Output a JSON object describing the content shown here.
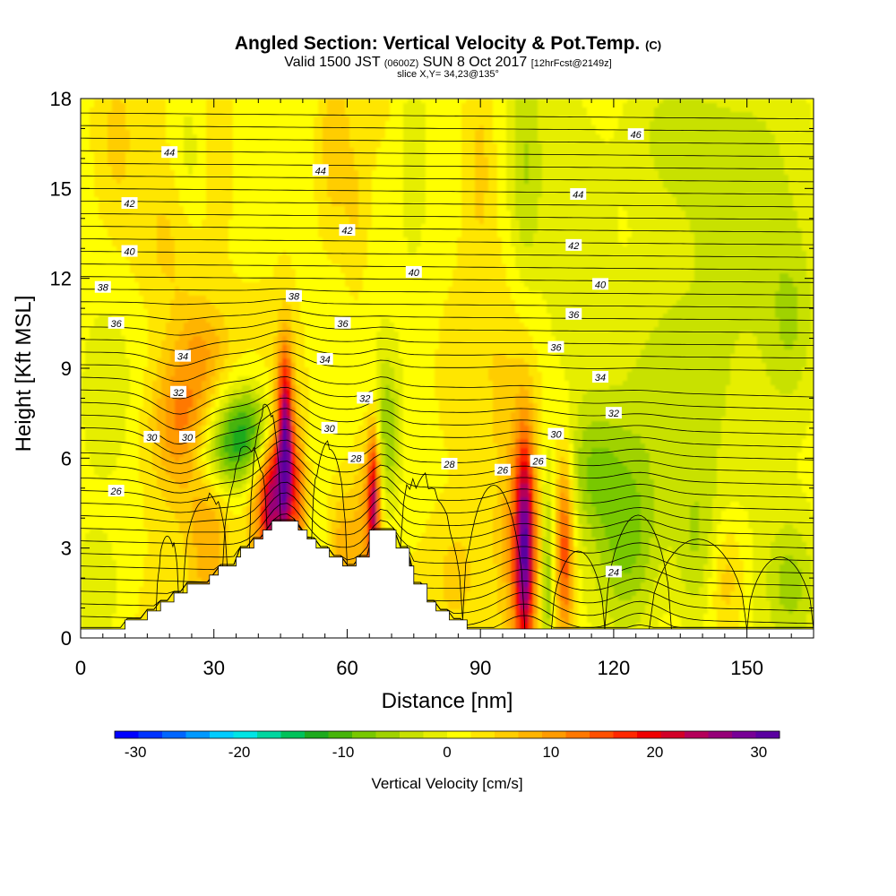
{
  "header": {
    "title": "Angled Section: Vertical Velocity & Pot.Temp.",
    "title_suffix": "(C)",
    "valid_a": "Valid 1500 JST",
    "valid_b": "(0600Z)",
    "valid_c": "SUN 8 Oct 2017",
    "valid_d": "[12hrFcst@2149z]",
    "slice": "slice X,Y= 34,23@135°"
  },
  "chart_data": {
    "type": "heatmap",
    "xlabel": "Distance [nm]",
    "ylabel": "Height [Kft MSL]",
    "xlim": [
      0,
      165
    ],
    "ylim": [
      0,
      18
    ],
    "x_ticks": [
      0,
      30,
      60,
      90,
      120,
      150
    ],
    "y_ticks": [
      0,
      3,
      6,
      9,
      12,
      15,
      18
    ],
    "colorbar": {
      "label": "Vertical Velocity [cm/s]",
      "range": [
        -32,
        32
      ],
      "tick_values": [
        -30,
        -20,
        -10,
        0,
        10,
        20,
        30
      ],
      "colors": [
        "#0000ff",
        "#0033ff",
        "#0066ff",
        "#0099ff",
        "#00ccff",
        "#00e5e5",
        "#00d6a0",
        "#00c25a",
        "#1eaa1e",
        "#46b40a",
        "#78c800",
        "#a0d200",
        "#c8e100",
        "#e6ee00",
        "#ffff00",
        "#ffe600",
        "#ffcd00",
        "#ffb400",
        "#ff9b00",
        "#ff7800",
        "#ff5000",
        "#ff2800",
        "#f00000",
        "#d20028",
        "#b4005a",
        "#960078",
        "#780096",
        "#5a00a0"
      ]
    },
    "terrain_profile": [
      [
        0,
        0.3
      ],
      [
        10,
        0.3
      ],
      [
        10,
        0.6
      ],
      [
        15,
        0.6
      ],
      [
        15,
        0.9
      ],
      [
        18,
        0.9
      ],
      [
        18,
        1.2
      ],
      [
        21,
        1.2
      ],
      [
        21,
        1.5
      ],
      [
        24,
        1.5
      ],
      [
        24,
        1.8
      ],
      [
        29,
        1.8
      ],
      [
        29,
        2.1
      ],
      [
        31,
        2.1
      ],
      [
        31,
        2.4
      ],
      [
        35,
        2.4
      ],
      [
        35,
        2.7
      ],
      [
        36,
        2.7
      ],
      [
        36,
        3.0
      ],
      [
        39,
        3.0
      ],
      [
        39,
        3.3
      ],
      [
        41,
        3.3
      ],
      [
        41,
        3.6
      ],
      [
        43,
        3.6
      ],
      [
        43,
        3.9
      ],
      [
        49,
        3.9
      ],
      [
        49,
        3.6
      ],
      [
        51,
        3.6
      ],
      [
        51,
        3.3
      ],
      [
        53,
        3.3
      ],
      [
        53,
        3.0
      ],
      [
        56,
        3.0
      ],
      [
        56,
        2.7
      ],
      [
        59,
        2.7
      ],
      [
        59,
        2.4
      ],
      [
        62,
        2.4
      ],
      [
        62,
        2.7
      ],
      [
        65,
        2.7
      ],
      [
        65,
        3.6
      ],
      [
        71,
        3.6
      ],
      [
        71,
        3.0
      ],
      [
        74,
        3.0
      ],
      [
        74,
        2.4
      ],
      [
        75,
        2.4
      ],
      [
        75,
        1.8
      ],
      [
        78,
        1.8
      ],
      [
        78,
        1.2
      ],
      [
        80,
        1.2
      ],
      [
        80,
        0.9
      ],
      [
        83,
        0.9
      ],
      [
        83,
        0.6
      ],
      [
        87,
        0.6
      ],
      [
        87,
        0.3
      ],
      [
        165,
        0.3
      ]
    ],
    "vertical_velocity_features": [
      {
        "x": 46,
        "y": 6.2,
        "sx": 1.3,
        "sy": 2.2,
        "w": 32
      },
      {
        "x": 43,
        "y": 4.5,
        "sx": 1.5,
        "sy": 1.8,
        "w": 16
      },
      {
        "x": 49,
        "y": 4.7,
        "sx": 1.3,
        "sy": 1.7,
        "w": 12
      },
      {
        "x": 41,
        "y": 4.2,
        "sx": 2.5,
        "sy": 2.0,
        "w": 10
      },
      {
        "x": 38,
        "y": 6.9,
        "sx": 5.0,
        "sy": 1.1,
        "w": -13
      },
      {
        "x": 31,
        "y": 6.1,
        "sx": 5.0,
        "sy": 1.0,
        "w": -8
      },
      {
        "x": 23,
        "y": 7.2,
        "sx": 5.0,
        "sy": 1.8,
        "w": 12
      },
      {
        "x": 29,
        "y": 3.0,
        "sx": 3.5,
        "sy": 2.0,
        "w": 7
      },
      {
        "x": 59,
        "y": 2.7,
        "sx": 2.0,
        "sy": 1.5,
        "w": 7
      },
      {
        "x": 66,
        "y": 4.7,
        "sx": 1.0,
        "sy": 1.7,
        "w": 20
      },
      {
        "x": 64,
        "y": 3.5,
        "sx": 2.0,
        "sy": 2.0,
        "w": 7
      },
      {
        "x": 69,
        "y": 6.8,
        "sx": 2.0,
        "sy": 1.8,
        "w": -8
      },
      {
        "x": 100,
        "y": 3.0,
        "sx": 1.6,
        "sy": 2.6,
        "w": 24
      },
      {
        "x": 98,
        "y": 2.6,
        "sx": 3.5,
        "sy": 3.0,
        "w": 8
      },
      {
        "x": 105,
        "y": 2.0,
        "sx": 0.8,
        "sy": 2.5,
        "w": -8
      },
      {
        "x": 109,
        "y": 2.9,
        "sx": 1.4,
        "sy": 2.3,
        "w": 15
      },
      {
        "x": 85,
        "y": 2.0,
        "sx": 4.0,
        "sy": 1.5,
        "w": 4
      },
      {
        "x": 123,
        "y": 3.3,
        "sx": 5.5,
        "sy": 2.5,
        "w": -10
      },
      {
        "x": 115,
        "y": 5.6,
        "sx": 4.0,
        "sy": 1.5,
        "w": -6
      },
      {
        "x": 139,
        "y": 3.0,
        "sx": 4.0,
        "sy": 2.0,
        "w": -6
      },
      {
        "x": 145,
        "y": 2.0,
        "sx": 3.0,
        "sy": 1.5,
        "w": 6
      },
      {
        "x": 160,
        "y": 1.8,
        "sx": 4.0,
        "sy": 1.5,
        "w": -6
      },
      {
        "x": 150,
        "y": 7.5,
        "sx": 10.0,
        "sy": 3.0,
        "w": -3
      },
      {
        "x": 150,
        "y": 14.0,
        "sx": 10.0,
        "sy": 3.0,
        "w": -5
      },
      {
        "x": 160,
        "y": 10.5,
        "sx": 4.0,
        "sy": 2.0,
        "w": -5
      },
      {
        "x": 132,
        "y": 17.0,
        "sx": 8.0,
        "sy": 2.0,
        "w": -5
      },
      {
        "x": 110,
        "y": 12.0,
        "sx": 6.0,
        "sy": 4.0,
        "w": -4
      },
      {
        "x": 57,
        "y": 16.5,
        "sx": 2.5,
        "sy": 2.0,
        "w": 5
      },
      {
        "x": 90,
        "y": 16.0,
        "sx": 2.5,
        "sy": 2.5,
        "w": 4
      },
      {
        "x": 100,
        "y": 15.5,
        "sx": 2.5,
        "sy": 3.0,
        "w": -5
      },
      {
        "x": 75,
        "y": 16.5,
        "sx": 2.5,
        "sy": 2.5,
        "w": -4
      },
      {
        "x": 62,
        "y": 14.0,
        "sx": 2.0,
        "sy": 2.0,
        "w": 3
      },
      {
        "x": 20,
        "y": 13.0,
        "sx": 6.0,
        "sy": 2.0,
        "w": 4
      },
      {
        "x": 28,
        "y": 9.8,
        "sx": 4.0,
        "sy": 1.0,
        "w": 5
      },
      {
        "x": 25,
        "y": 16.0,
        "sx": 3.0,
        "sy": 2.0,
        "w": -4
      },
      {
        "x": 8,
        "y": 16.5,
        "sx": 3.0,
        "sy": 2.0,
        "w": 3
      },
      {
        "x": 30,
        "y": 17.0,
        "sx": 3.5,
        "sy": 2.0,
        "w": 3
      },
      {
        "x": 133,
        "y": 8.5,
        "sx": 8.0,
        "sy": 2.5,
        "w": -3
      },
      {
        "x": 4,
        "y": 1.5,
        "sx": 4.0,
        "sy": 1.5,
        "w": -4
      },
      {
        "x": 5,
        "y": 8.0,
        "sx": 4.0,
        "sy": 2.0,
        "w": -3
      },
      {
        "x": 90,
        "y": 9.0,
        "sx": 12.0,
        "sy": 2.5,
        "w": 2
      }
    ],
    "potential_temperature_labels": [
      {
        "x": 8,
        "y": 4.9,
        "text": "26"
      },
      {
        "x": 95,
        "y": 5.6,
        "text": "26"
      },
      {
        "x": 103,
        "y": 5.9,
        "text": "26"
      },
      {
        "x": 62,
        "y": 6.0,
        "text": "28"
      },
      {
        "x": 83,
        "y": 5.8,
        "text": "28"
      },
      {
        "x": 16,
        "y": 6.7,
        "text": "30"
      },
      {
        "x": 24,
        "y": 6.7,
        "text": "30"
      },
      {
        "x": 56,
        "y": 7.0,
        "text": "30"
      },
      {
        "x": 107,
        "y": 6.8,
        "text": "30"
      },
      {
        "x": 22,
        "y": 8.2,
        "text": "32"
      },
      {
        "x": 64,
        "y": 8.0,
        "text": "32"
      },
      {
        "x": 120,
        "y": 7.5,
        "text": "32"
      },
      {
        "x": 23,
        "y": 9.4,
        "text": "34"
      },
      {
        "x": 55,
        "y": 9.3,
        "text": "34"
      },
      {
        "x": 117,
        "y": 8.7,
        "text": "34"
      },
      {
        "x": 8,
        "y": 10.5,
        "text": "36"
      },
      {
        "x": 59,
        "y": 10.5,
        "text": "36"
      },
      {
        "x": 107,
        "y": 9.7,
        "text": "36"
      },
      {
        "x": 111,
        "y": 10.8,
        "text": "36"
      },
      {
        "x": 5,
        "y": 11.7,
        "text": "38"
      },
      {
        "x": 48,
        "y": 11.4,
        "text": "38"
      },
      {
        "x": 11,
        "y": 12.9,
        "text": "40"
      },
      {
        "x": 75,
        "y": 12.2,
        "text": "40"
      },
      {
        "x": 117,
        "y": 11.8,
        "text": "40"
      },
      {
        "x": 11,
        "y": 14.5,
        "text": "42"
      },
      {
        "x": 60,
        "y": 13.6,
        "text": "42"
      },
      {
        "x": 111,
        "y": 13.1,
        "text": "42"
      },
      {
        "x": 20,
        "y": 16.2,
        "text": "44"
      },
      {
        "x": 54,
        "y": 15.6,
        "text": "44"
      },
      {
        "x": 112,
        "y": 14.8,
        "text": "44"
      },
      {
        "x": 125,
        "y": 16.8,
        "text": "46"
      },
      {
        "x": 120,
        "y": 2.2,
        "text": "24"
      }
    ]
  }
}
